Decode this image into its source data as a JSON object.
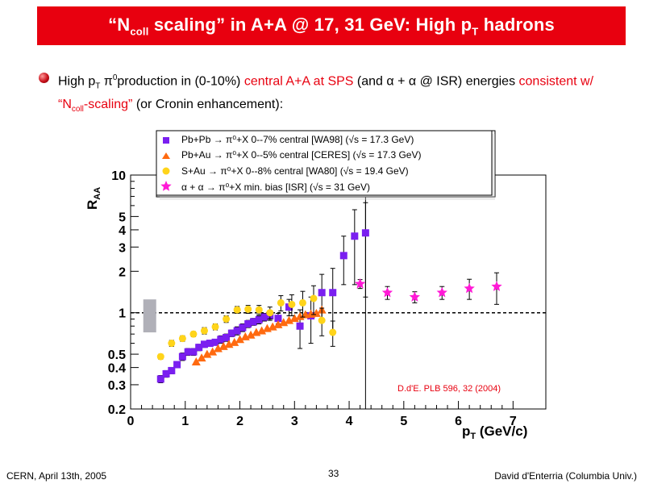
{
  "slide": {
    "title_pre": "“N",
    "title_sub": "coll",
    "title_mid": " scaling” in A+A @ 17, 31 GeV: High p",
    "title_sub2": "T",
    "title_post": " hadrons",
    "bullet": {
      "t1": "High p",
      "t1_sub": "T",
      "t2": " π",
      "t2_sup": "0",
      "t3": "production in (0-10%) ",
      "t4_red": "central A+A at SPS",
      "t5": " (and ",
      "t6": "α + α",
      "t7": "  @ ISR) energies ",
      "t8_red": "consistent w/  “N",
      "t8_sub": "coll",
      "t8_red2": "-scaling”",
      "t9": " (or Cronin enhancement):"
    },
    "footer": {
      "left": "CERN, April 13th, 2005",
      "page": "33",
      "right": "David d'Enterria (Columbia Univ.)"
    },
    "colors": {
      "title_bar": "#e8000f",
      "highlight": "#e8000f",
      "pbpb": "#7a1ff0",
      "pbau": "#ff6a10",
      "sau": "#ffd41a",
      "aa": "#ff1ad6",
      "sys_band": "#b0b0b8"
    }
  },
  "chart_data": {
    "type": "scatter",
    "xlabel": "p",
    "xlabel_sub": "T",
    "xlabel_unit": " (GeV/c)",
    "ylabel": "R",
    "ylabel_sub": "AA",
    "y_log": true,
    "xlim": [
      0,
      7.6
    ],
    "ylim": [
      0.2,
      10
    ],
    "x_ticks": [
      0,
      1,
      2,
      3,
      4,
      5,
      6,
      7
    ],
    "x_tick_labels": [
      "0",
      "1",
      "2",
      "3",
      "4",
      "5",
      "6",
      "7"
    ],
    "y_ticks": [
      0.2,
      0.3,
      0.4,
      0.5,
      1,
      2,
      3,
      4,
      5,
      10
    ],
    "y_tick_labels": [
      "0.2",
      "0.3",
      "0.4",
      "0.5",
      "1",
      "2",
      "3",
      "4",
      "5",
      "10"
    ],
    "reference_line_y": 1,
    "vertical_line_x": 4.3,
    "annotation": "D.d'E. PLB 596, 32 (2004)",
    "series": [
      {
        "name_html": "Pb+Pb → π⁰+X  0--7%  central [WA98] (√s = 17.3 GeV)",
        "marker": "square",
        "color": "#7a1ff0",
        "points": [
          [
            0.55,
            0.33,
            0.02
          ],
          [
            0.65,
            0.36,
            0.02
          ],
          [
            0.75,
            0.38,
            0.02
          ],
          [
            0.85,
            0.42,
            0.02
          ],
          [
            0.95,
            0.48,
            0.03
          ],
          [
            1.05,
            0.52,
            0.03
          ],
          [
            1.15,
            0.52,
            0.03
          ],
          [
            1.25,
            0.56,
            0.03
          ],
          [
            1.35,
            0.59,
            0.03
          ],
          [
            1.45,
            0.6,
            0.03
          ],
          [
            1.55,
            0.61,
            0.03
          ],
          [
            1.65,
            0.64,
            0.04
          ],
          [
            1.75,
            0.66,
            0.04
          ],
          [
            1.85,
            0.71,
            0.04
          ],
          [
            1.95,
            0.74,
            0.05
          ],
          [
            2.05,
            0.78,
            0.05
          ],
          [
            2.15,
            0.83,
            0.05
          ],
          [
            2.25,
            0.86,
            0.05
          ],
          [
            2.35,
            0.89,
            0.06
          ],
          [
            2.45,
            0.93,
            0.06
          ],
          [
            2.55,
            0.95,
            0.07
          ],
          [
            2.7,
            0.91,
            0.08
          ],
          [
            2.9,
            1.1,
            0.15
          ],
          [
            3.1,
            0.8,
            0.25
          ],
          [
            3.3,
            0.95,
            0.35
          ],
          [
            3.5,
            1.4,
            0.5
          ],
          [
            3.7,
            1.4,
            0.7
          ],
          [
            3.9,
            2.6,
            1.0
          ],
          [
            4.1,
            3.6,
            2.0
          ],
          [
            4.3,
            3.8,
            2.5
          ]
        ]
      },
      {
        "name_html": "Pb+Au → π⁰+X  0--5% central [CERES] (√s = 17.3 GeV)",
        "marker": "triangle",
        "color": "#ff6a10",
        "points": [
          [
            1.2,
            0.44
          ],
          [
            1.3,
            0.47
          ],
          [
            1.4,
            0.5
          ],
          [
            1.5,
            0.52
          ],
          [
            1.6,
            0.55
          ],
          [
            1.7,
            0.57
          ],
          [
            1.8,
            0.59
          ],
          [
            1.9,
            0.61
          ],
          [
            2.0,
            0.64
          ],
          [
            2.1,
            0.67
          ],
          [
            2.2,
            0.69
          ],
          [
            2.3,
            0.72
          ],
          [
            2.4,
            0.74
          ],
          [
            2.5,
            0.77
          ],
          [
            2.6,
            0.79
          ],
          [
            2.7,
            0.82
          ],
          [
            2.8,
            0.85
          ],
          [
            2.9,
            0.88
          ],
          [
            3.0,
            0.91
          ],
          [
            3.1,
            0.94
          ],
          [
            3.2,
            0.97
          ],
          [
            3.3,
            0.98
          ],
          [
            3.4,
            0.99
          ],
          [
            3.5,
            1.05
          ]
        ]
      },
      {
        "name_html": "S+Au → π⁰+X 0--8%  central [WA80] (√s = 19.4 GeV)",
        "marker": "circle",
        "color": "#ffd41a",
        "points": [
          [
            0.55,
            0.48,
            0.02
          ],
          [
            0.75,
            0.6,
            0.03
          ],
          [
            0.95,
            0.65,
            0.03
          ],
          [
            1.15,
            0.7,
            0.03
          ],
          [
            1.35,
            0.74,
            0.04
          ],
          [
            1.55,
            0.79,
            0.04
          ],
          [
            1.75,
            0.9,
            0.05
          ],
          [
            1.95,
            1.05,
            0.06
          ],
          [
            2.15,
            1.06,
            0.07
          ],
          [
            2.35,
            1.05,
            0.08
          ],
          [
            2.55,
            1.0,
            0.1
          ],
          [
            2.75,
            1.18,
            0.15
          ],
          [
            2.95,
            1.15,
            0.2
          ],
          [
            3.15,
            1.18,
            0.25
          ],
          [
            3.35,
            1.27,
            0.3
          ],
          [
            3.5,
            0.88,
            0.2
          ],
          [
            3.7,
            0.72,
            0.15
          ]
        ]
      },
      {
        "name_html": "α + α → π⁰+X min. bias [ISR] (√s = 31 GeV)",
        "marker": "star",
        "color": "#ff1ad6",
        "points": [
          [
            4.2,
            1.62,
            0.12
          ],
          [
            4.7,
            1.4,
            0.15
          ],
          [
            5.2,
            1.3,
            0.12
          ],
          [
            5.7,
            1.4,
            0.15
          ],
          [
            6.2,
            1.5,
            0.25
          ],
          [
            6.7,
            1.55,
            0.4
          ]
        ]
      }
    ],
    "sys_band": {
      "x": 0.35,
      "ylow": 0.72,
      "yhigh": 1.25
    }
  }
}
